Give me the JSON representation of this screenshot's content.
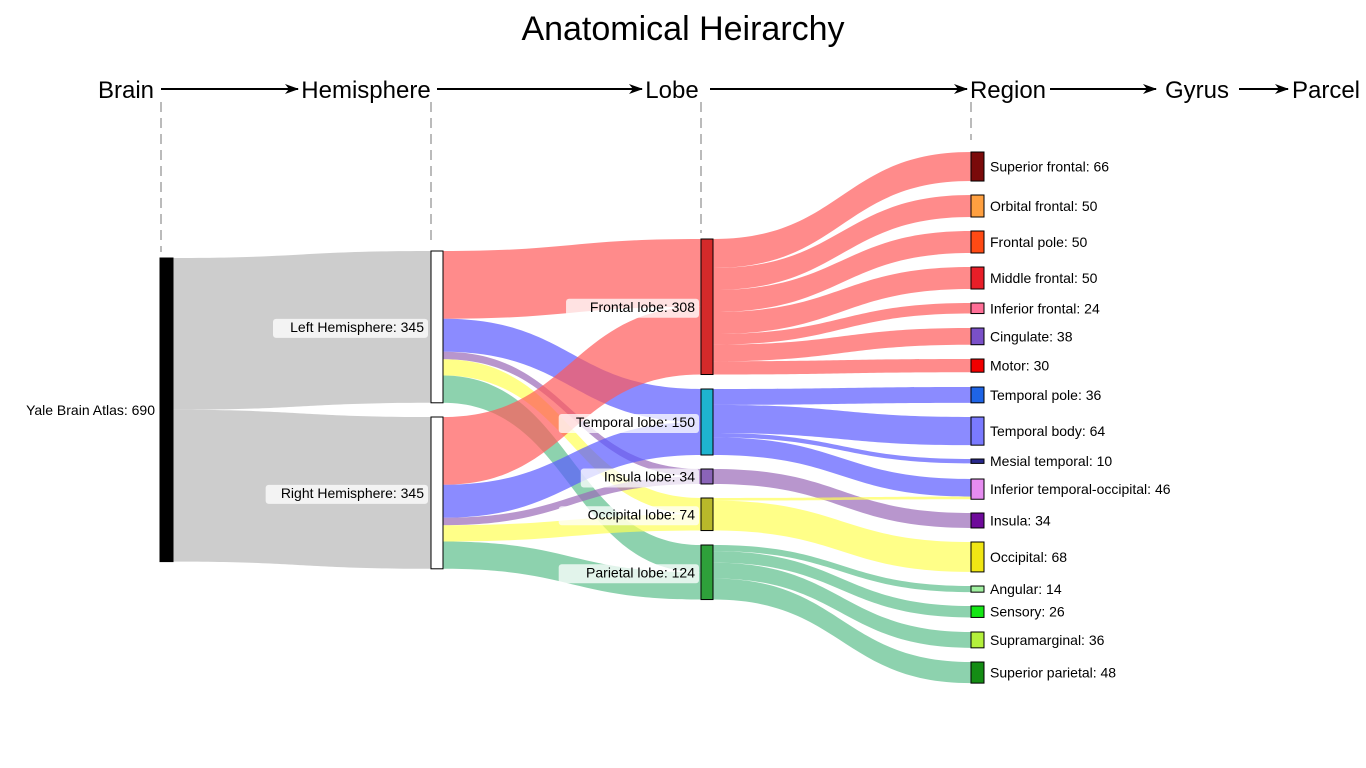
{
  "title": "Anatomical Heirarchy",
  "levels": [
    "Brain",
    "Hemisphere",
    "Lobe",
    "Region",
    "Gyrus",
    "Parcel"
  ],
  "colors": {
    "link_gray": "#c8c8c8",
    "frontal": "#ff5a5a",
    "temporal": "#5a5aff",
    "insula": "#9a6ab8",
    "occipital": "#ffff55",
    "parietal": "#5cbf8c"
  },
  "nodes": [
    {
      "id": "brain",
      "label": "Yale Brain Atlas",
      "value": 690,
      "color": "#000000"
    },
    {
      "id": "left",
      "label": "Left Hemisphere",
      "value": 345,
      "color": "#ffffff"
    },
    {
      "id": "right",
      "label": "Right Hemisphere",
      "value": 345,
      "color": "#ffffff"
    },
    {
      "id": "frontal",
      "label": "Frontal lobe",
      "value": 308,
      "color": "#d42a2a"
    },
    {
      "id": "temporal",
      "label": "Temporal lobe",
      "value": 150,
      "color": "#1eb4d0"
    },
    {
      "id": "insula",
      "label": "Insula lobe",
      "value": 34,
      "color": "#8a64b8"
    },
    {
      "id": "occipital",
      "label": "Occipital lobe",
      "value": 74,
      "color": "#b8b82a"
    },
    {
      "id": "parietal",
      "label": "Parietal lobe",
      "value": 124,
      "color": "#2ea03a"
    },
    {
      "id": "sup_frontal",
      "label": "Superior frontal",
      "value": 66,
      "color": "#7a0a0a"
    },
    {
      "id": "orb_frontal",
      "label": "Orbital frontal",
      "value": 50,
      "color": "#ffa040"
    },
    {
      "id": "frontal_pole",
      "label": "Frontal pole",
      "value": 50,
      "color": "#ff4a14"
    },
    {
      "id": "mid_frontal",
      "label": "Middle frontal",
      "value": 50,
      "color": "#e81e28"
    },
    {
      "id": "inf_frontal",
      "label": "Inferior frontal",
      "value": 24,
      "color": "#ff6e96"
    },
    {
      "id": "cingulate",
      "label": "Cingulate",
      "value": 38,
      "color": "#7a50c8"
    },
    {
      "id": "motor",
      "label": "Motor",
      "value": 30,
      "color": "#f00000"
    },
    {
      "id": "temporal_pole",
      "label": "Temporal pole",
      "value": 36,
      "color": "#1e64e6"
    },
    {
      "id": "temporal_body",
      "label": "Temporal body",
      "value": 64,
      "color": "#7a7aff"
    },
    {
      "id": "mesial_temporal",
      "label": "Mesial temporal",
      "value": 10,
      "color": "#28288c"
    },
    {
      "id": "inf_temp_occ",
      "label": "Inferior temporal-occipital",
      "value": 46,
      "color": "#e68cf0"
    },
    {
      "id": "insula_r",
      "label": "Insula",
      "value": 34,
      "color": "#6e0a9a"
    },
    {
      "id": "occipital_r",
      "label": "Occipital",
      "value": 68,
      "color": "#f0e614"
    },
    {
      "id": "angular",
      "label": "Angular",
      "value": 14,
      "color": "#a0f0a0"
    },
    {
      "id": "sensory",
      "label": "Sensory",
      "value": 26,
      "color": "#14e614"
    },
    {
      "id": "supramarginal",
      "label": "Supramarginal",
      "value": 36,
      "color": "#b4f03c"
    },
    {
      "id": "sup_parietal",
      "label": "Superior parietal",
      "value": 48,
      "color": "#148c14"
    }
  ],
  "links": [
    {
      "source": "brain",
      "target": "left",
      "value": 345
    },
    {
      "source": "brain",
      "target": "right",
      "value": 345
    },
    {
      "source": "left",
      "target": "frontal",
      "value": 154
    },
    {
      "source": "left",
      "target": "temporal",
      "value": 75
    },
    {
      "source": "left",
      "target": "insula",
      "value": 17
    },
    {
      "source": "left",
      "target": "occipital",
      "value": 37
    },
    {
      "source": "left",
      "target": "parietal",
      "value": 62
    },
    {
      "source": "right",
      "target": "frontal",
      "value": 154
    },
    {
      "source": "right",
      "target": "temporal",
      "value": 75
    },
    {
      "source": "right",
      "target": "insula",
      "value": 17
    },
    {
      "source": "right",
      "target": "occipital",
      "value": 37
    },
    {
      "source": "right",
      "target": "parietal",
      "value": 62
    },
    {
      "source": "frontal",
      "target": "sup_frontal",
      "value": 66
    },
    {
      "source": "frontal",
      "target": "orb_frontal",
      "value": 50
    },
    {
      "source": "frontal",
      "target": "frontal_pole",
      "value": 50
    },
    {
      "source": "frontal",
      "target": "mid_frontal",
      "value": 50
    },
    {
      "source": "frontal",
      "target": "inf_frontal",
      "value": 24
    },
    {
      "source": "frontal",
      "target": "cingulate",
      "value": 38
    },
    {
      "source": "frontal",
      "target": "motor",
      "value": 30
    },
    {
      "source": "temporal",
      "target": "temporal_pole",
      "value": 36
    },
    {
      "source": "temporal",
      "target": "temporal_body",
      "value": 64
    },
    {
      "source": "temporal",
      "target": "mesial_temporal",
      "value": 10
    },
    {
      "source": "temporal",
      "target": "inf_temp_occ",
      "value": 40
    },
    {
      "source": "insula",
      "target": "insula_r",
      "value": 34
    },
    {
      "source": "occipital",
      "target": "inf_temp_occ",
      "value": 6
    },
    {
      "source": "occipital",
      "target": "occipital_r",
      "value": 68
    },
    {
      "source": "parietal",
      "target": "angular",
      "value": 14
    },
    {
      "source": "parietal",
      "target": "sensory",
      "value": 26
    },
    {
      "source": "parietal",
      "target": "supramarginal",
      "value": 36
    },
    {
      "source": "parietal",
      "target": "sup_parietal",
      "value": 48
    }
  ]
}
